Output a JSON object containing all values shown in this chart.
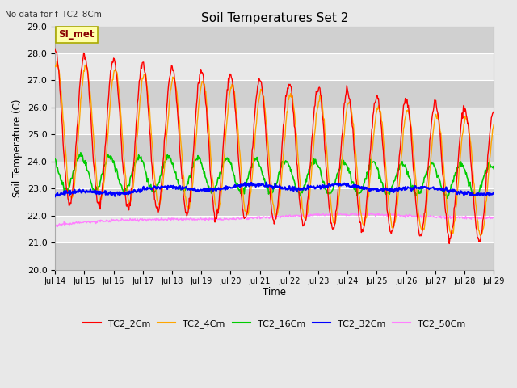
{
  "title": "Soil Temperatures Set 2",
  "top_left_text": "No data for f_TC2_8Cm",
  "ylabel": "Soil Temperature (C)",
  "xlabel": "Time",
  "annotation_box": "SI_met",
  "ylim": [
    20.0,
    29.0
  ],
  "yticks": [
    20.0,
    21.0,
    22.0,
    23.0,
    24.0,
    25.0,
    26.0,
    27.0,
    28.0,
    29.0
  ],
  "xtick_labels": [
    "Jul 14",
    "Jul 15",
    "Jul 16",
    "Jul 17",
    "Jul 18",
    "Jul 19",
    "Jul 20",
    "Jul 21",
    "Jul 22",
    "Jul 23",
    "Jul 24",
    "Jul 25",
    "Jul 26",
    "Jul 27",
    "Jul 28",
    "Jul 29"
  ],
  "series_colors": {
    "TC2_2Cm": "#FF0000",
    "TC2_4Cm": "#FFA500",
    "TC2_16Cm": "#00CC00",
    "TC2_32Cm": "#0000FF",
    "TC2_50Cm": "#FF80FF"
  },
  "fig_bg_color": "#E8E8E8",
  "plot_bg_color": "#E8E8E8",
  "band_color_dark": "#D0D0D0",
  "band_color_light": "#E8E8E8"
}
